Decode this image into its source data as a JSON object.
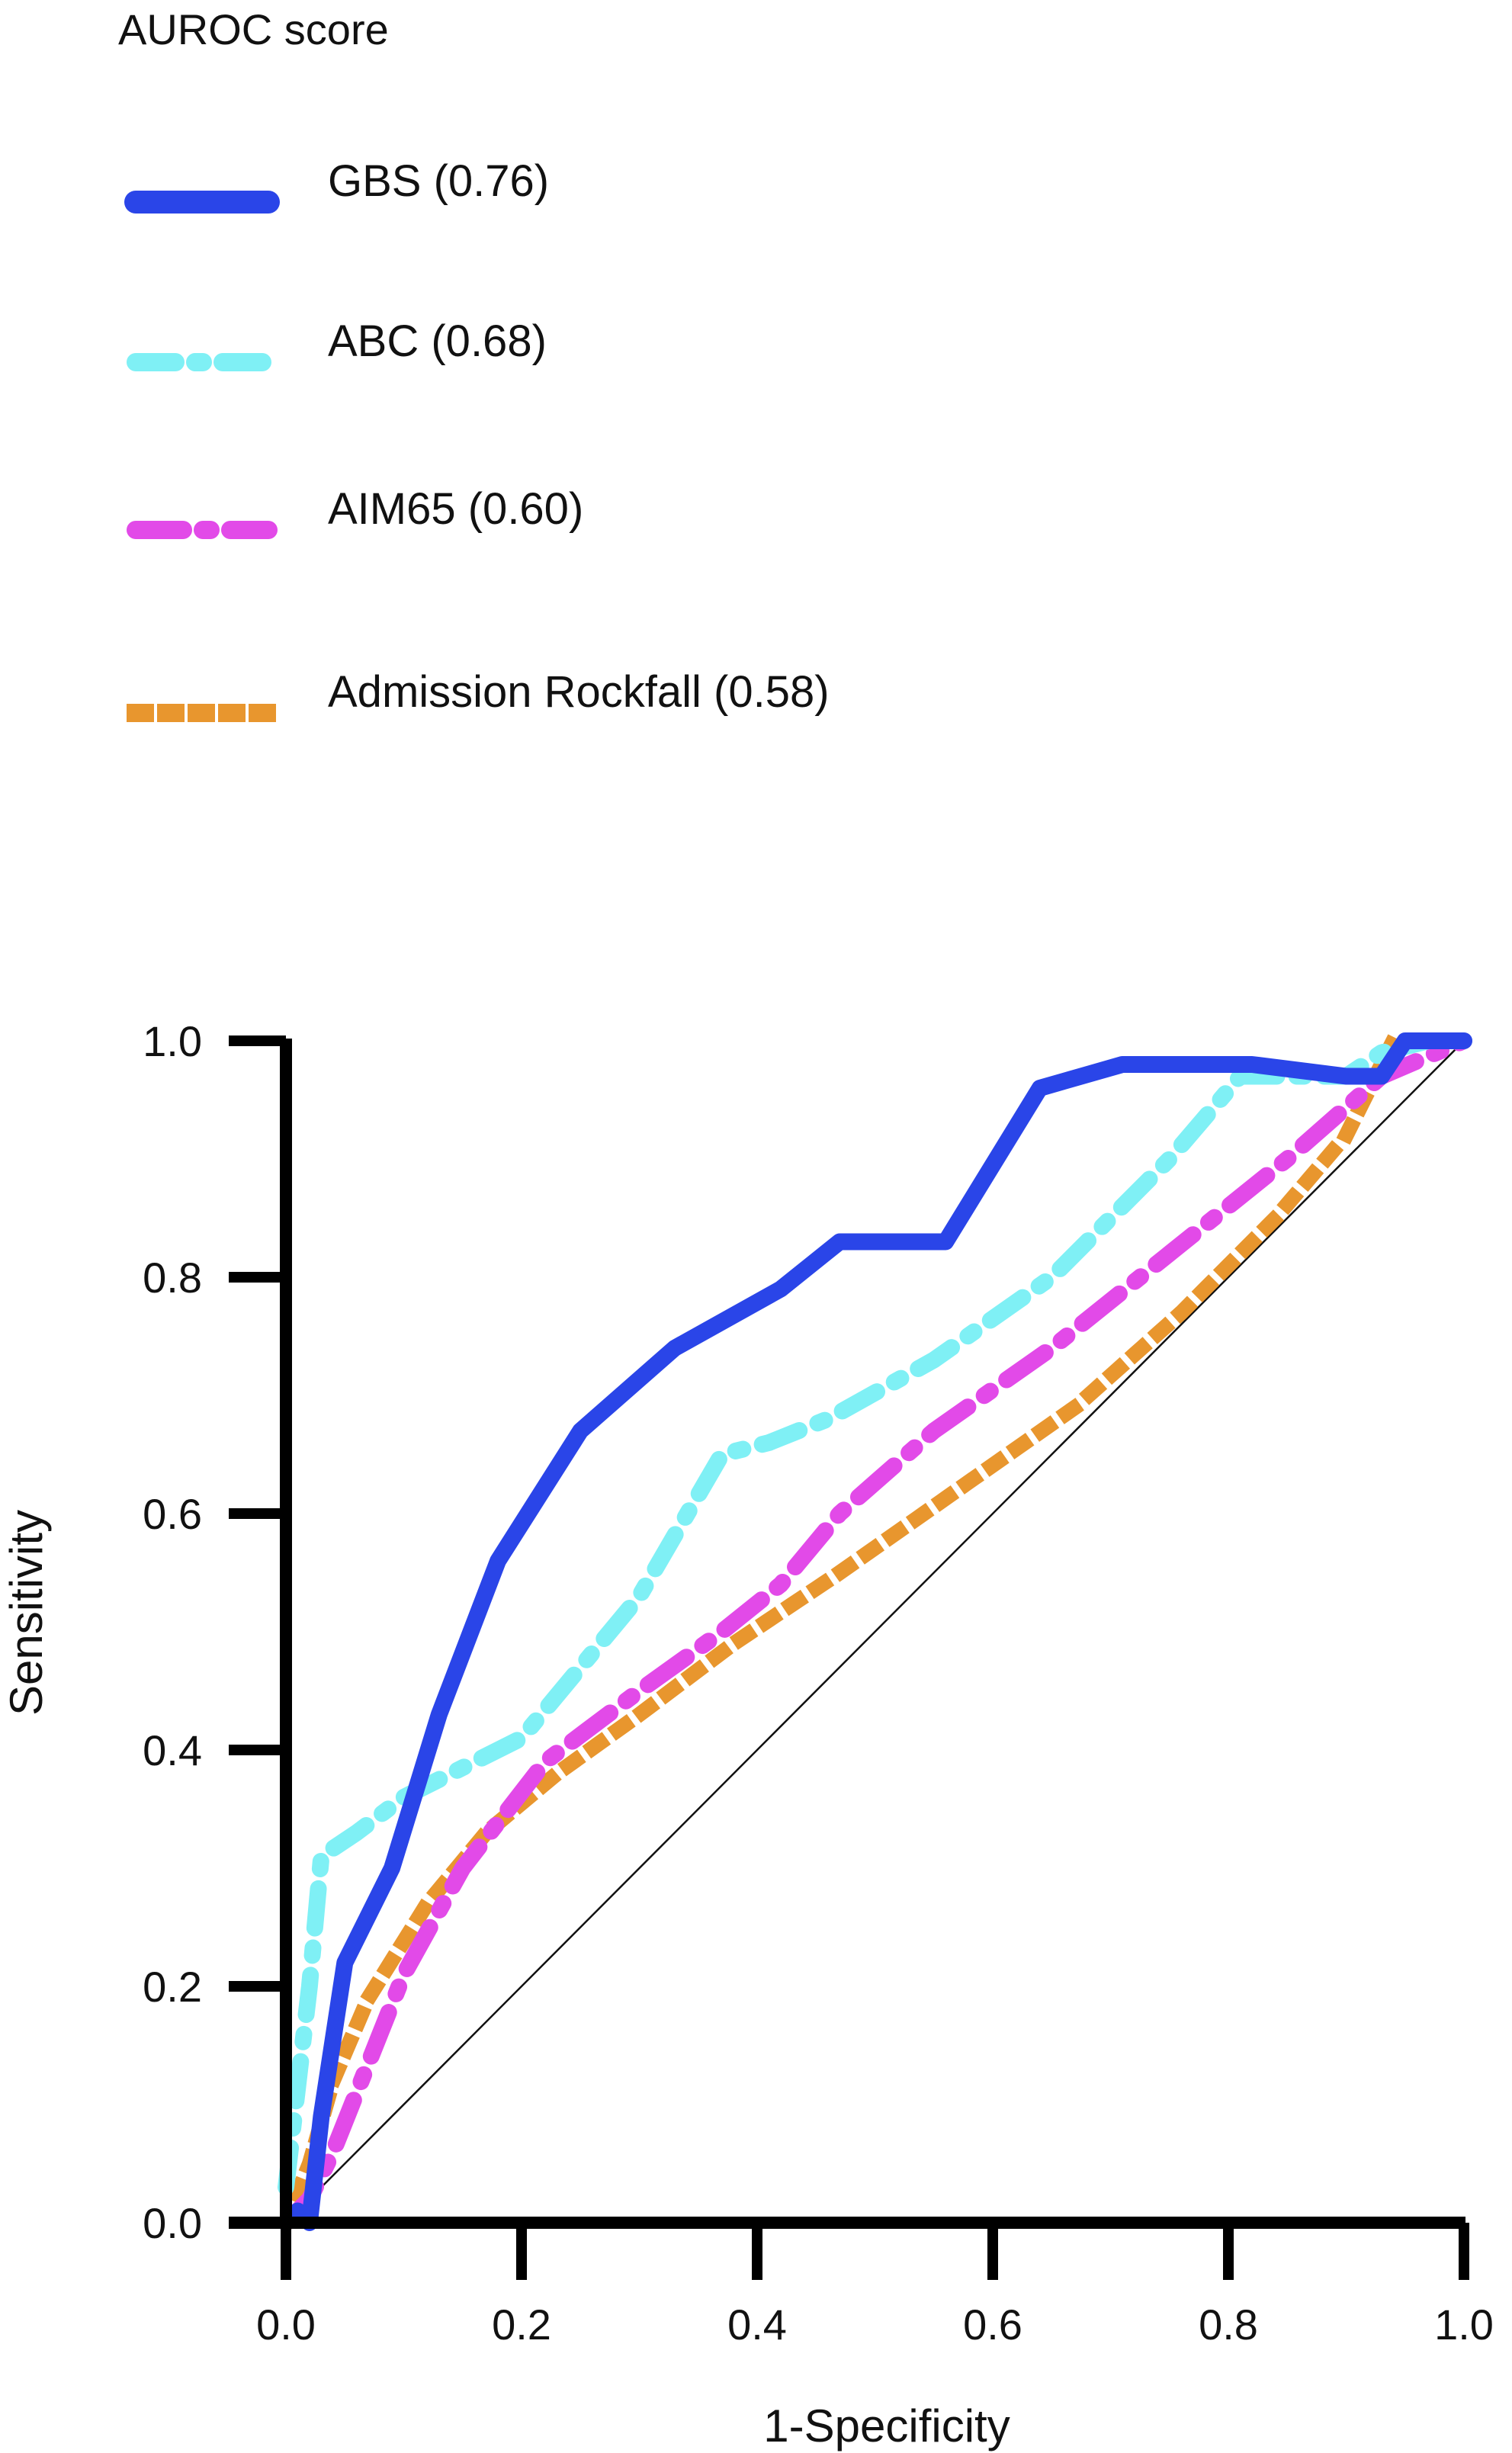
{
  "chart_data": {
    "type": "line",
    "title": "",
    "xlabel": "1-Specificity",
    "ylabel": "Sensitivity",
    "xlim": [
      0.0,
      1.0
    ],
    "ylim": [
      0.0,
      1.0
    ],
    "xticks": [
      "0.0",
      "0.2",
      "0.4",
      "0.6",
      "0.8",
      "1.0"
    ],
    "yticks": [
      "0.0",
      "0.2",
      "0.4",
      "0.6",
      "0.8",
      "1.0"
    ],
    "grid": false,
    "legend": {
      "title": "AUROC score",
      "placement": "top-left, above plot"
    },
    "reference_line": {
      "x": [
        0,
        1
      ],
      "y": [
        0,
        1
      ],
      "color": "#111111"
    },
    "series": [
      {
        "name": "GBS (0.76)",
        "color": "#2a45e8",
        "style": "solid",
        "x": [
          0.0,
          0.01,
          0.02,
          0.03,
          0.05,
          0.09,
          0.13,
          0.18,
          0.25,
          0.33,
          0.42,
          0.47,
          0.56,
          0.64,
          0.71,
          0.82,
          0.9,
          0.93,
          0.95,
          1.0
        ],
        "y": [
          0.0,
          0.01,
          0.0,
          0.09,
          0.22,
          0.3,
          0.43,
          0.56,
          0.67,
          0.74,
          0.79,
          0.83,
          0.83,
          0.96,
          0.98,
          0.98,
          0.97,
          0.97,
          1.0,
          1.0
        ]
      },
      {
        "name": "ABC (0.68)",
        "color": "#7ff0f5",
        "style": "dash-dot",
        "x": [
          0.0,
          0.02,
          0.03,
          0.06,
          0.1,
          0.2,
          0.3,
          0.37,
          0.41,
          0.46,
          0.55,
          0.65,
          0.75,
          0.81,
          0.9,
          0.93,
          0.97,
          1.0
        ],
        "y": [
          0.03,
          0.2,
          0.31,
          0.33,
          0.36,
          0.41,
          0.53,
          0.65,
          0.66,
          0.68,
          0.73,
          0.8,
          0.9,
          0.97,
          0.97,
          0.99,
          1.0,
          1.0
        ]
      },
      {
        "name": "AIM65 (0.60)",
        "color": "#e24ae8",
        "style": "long dash-dot",
        "x": [
          0.0,
          0.02,
          0.04,
          0.06,
          0.1,
          0.15,
          0.22,
          0.3,
          0.37,
          0.42,
          0.47,
          0.55,
          0.65,
          0.75,
          0.85,
          0.93,
          1.0
        ],
        "y": [
          0.0,
          0.02,
          0.06,
          0.11,
          0.21,
          0.3,
          0.39,
          0.45,
          0.5,
          0.54,
          0.6,
          0.67,
          0.74,
          0.82,
          0.9,
          0.97,
          1.0
        ]
      },
      {
        "name": "Admission Rockfall (0.58)",
        "color": "#e8962e",
        "style": "dotted",
        "x": [
          0.0,
          0.02,
          0.04,
          0.07,
          0.12,
          0.17,
          0.23,
          0.3,
          0.38,
          0.47,
          0.57,
          0.67,
          0.76,
          0.84,
          0.9,
          0.94,
          1.0
        ],
        "y": [
          0.0,
          0.05,
          0.12,
          0.19,
          0.27,
          0.33,
          0.38,
          0.43,
          0.49,
          0.55,
          0.62,
          0.69,
          0.77,
          0.85,
          0.92,
          1.0,
          1.0
        ]
      }
    ]
  }
}
